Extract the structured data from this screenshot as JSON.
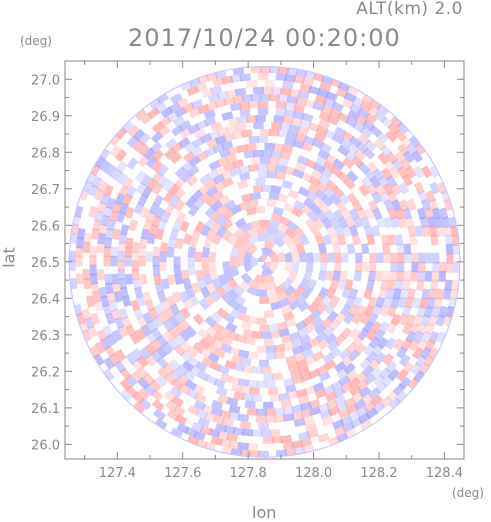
{
  "header": {
    "altitude_label": "ALT(km) 2.0",
    "timestamp": "2017/10/24 00:20:00"
  },
  "axes": {
    "y_unit": "(deg)",
    "x_unit": "(deg)",
    "y_label": "lat",
    "x_label": "lon"
  },
  "colors": {
    "axis": "#8a8a8a",
    "positive": "#ff9b9b",
    "negative": "#9b9bff",
    "neutral": "#ffffff"
  },
  "chart_data": {
    "type": "heatmap",
    "title": "2017/10/24 00:20:00",
    "subtitle": "ALT(km) 2.0",
    "xlabel": "lon",
    "ylabel": "lat",
    "x_unit": "(deg)",
    "y_unit": "(deg)",
    "xlim": [
      127.24,
      128.46
    ],
    "ylim": [
      25.96,
      27.05
    ],
    "xticks": [
      127.4,
      127.6,
      127.8,
      128.0,
      128.2,
      128.4
    ],
    "yticks": [
      26.0,
      26.1,
      26.2,
      26.3,
      26.4,
      26.5,
      26.6,
      26.7,
      26.8,
      26.9,
      27.0
    ],
    "xtick_labels": [
      "127.4",
      "127.6",
      "127.8",
      "128.0",
      "128.2",
      "128.4"
    ],
    "ytick_labels": [
      "26.0",
      "26.1",
      "26.2",
      "26.3",
      "26.4",
      "26.5",
      "26.6",
      "26.7",
      "26.8",
      "26.9",
      "27.0"
    ],
    "center": {
      "lon": 127.85,
      "lat": 26.5
    },
    "radius_deg_lat": 0.535,
    "pattern": "radar PPI field, alternating positive (red) and negative (blue) radial-velocity-like arcs",
    "grid": false,
    "legend": "none"
  }
}
